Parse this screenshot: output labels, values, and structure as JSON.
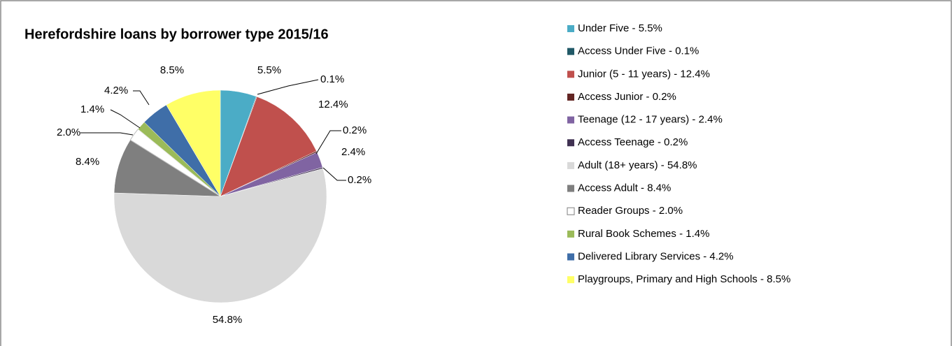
{
  "chart_data": {
    "type": "pie",
    "title": "Herefordshire loans by borrower type 2015/16",
    "categories": [
      "Under Five - 5.5%",
      "Access Under Five - 0.1%",
      "Junior (5 - 11 years) - 12.4%",
      "Access Junior - 0.2%",
      "Teenage (12 - 17 years) - 2.4%",
      "Access Teenage - 0.2%",
      "Adult (18+ years) - 54.8%",
      "Access Adult - 8.4%",
      "Reader Groups - 2.0%",
      "Rural Book Schemes - 1.4%",
      "Delivered Library Services - 4.2%",
      "Playgroups, Primary and High Schools - 8.5%"
    ],
    "values": [
      5.5,
      0.1,
      12.4,
      0.2,
      2.4,
      0.2,
      54.8,
      8.4,
      2.0,
      1.4,
      4.2,
      8.5
    ],
    "value_labels": [
      "5.5%",
      "0.1%",
      "12.4%",
      "0.2%",
      "2.4%",
      "0.2%",
      "54.8%",
      "8.4%",
      "2.0%",
      "1.4%",
      "4.2%",
      "8.5%"
    ],
    "colors": [
      "#4bacc6",
      "#215967",
      "#c0504d",
      "#632523",
      "#8064a2",
      "#403152",
      "#d9d9d9",
      "#7f7f7f",
      "#ffffff",
      "#9bbb59",
      "#3f6ea8",
      "#ffff66"
    ],
    "legend": "right"
  }
}
